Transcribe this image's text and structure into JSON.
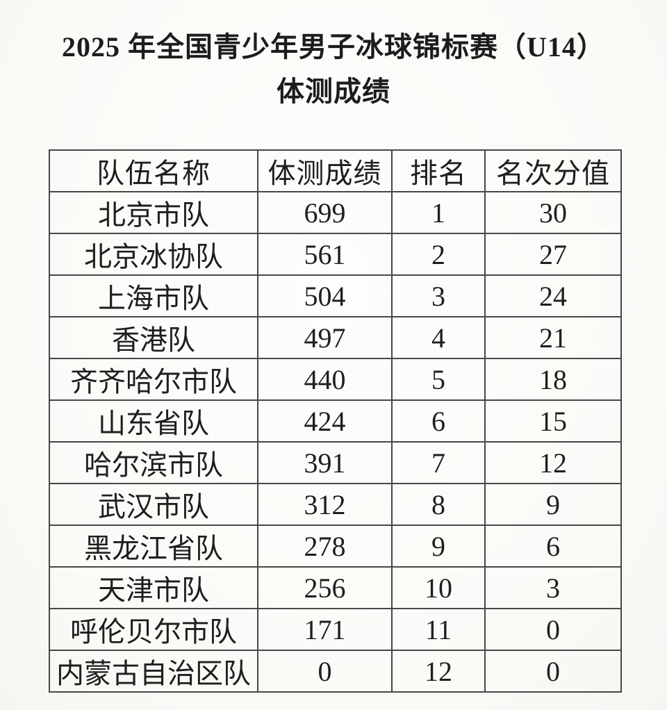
{
  "document": {
    "title_line1": "2025 年全国青少年男子冰球锦标赛（U14）",
    "title_line2": "体测成绩"
  },
  "table": {
    "columns": [
      "队伍名称",
      "体测成绩",
      "排名",
      "名次分值"
    ],
    "rows": [
      {
        "team": "北京市队",
        "score": "699",
        "rank": "1",
        "points": "30"
      },
      {
        "team": "北京冰协队",
        "score": "561",
        "rank": "2",
        "points": "27"
      },
      {
        "team": "上海市队",
        "score": "504",
        "rank": "3",
        "points": "24"
      },
      {
        "team": "香港队",
        "score": "497",
        "rank": "4",
        "points": "21"
      },
      {
        "team": "齐齐哈尔市队",
        "score": "440",
        "rank": "5",
        "points": "18"
      },
      {
        "team": "山东省队",
        "score": "424",
        "rank": "6",
        "points": "15"
      },
      {
        "team": "哈尔滨市队",
        "score": "391",
        "rank": "7",
        "points": "12"
      },
      {
        "team": "武汉市队",
        "score": "312",
        "rank": "8",
        "points": "9"
      },
      {
        "team": "黑龙江省队",
        "score": "278",
        "rank": "9",
        "points": "6"
      },
      {
        "team": "天津市队",
        "score": "256",
        "rank": "10",
        "points": "3"
      },
      {
        "team": "呼伦贝尔市队",
        "score": "171",
        "rank": "11",
        "points": "0"
      },
      {
        "team": "内蒙古自治区队",
        "score": "0",
        "rank": "12",
        "points": "0"
      }
    ]
  },
  "colors": {
    "text": "#1e1e1e",
    "border": "#474747",
    "background": "#fbfbf9"
  }
}
